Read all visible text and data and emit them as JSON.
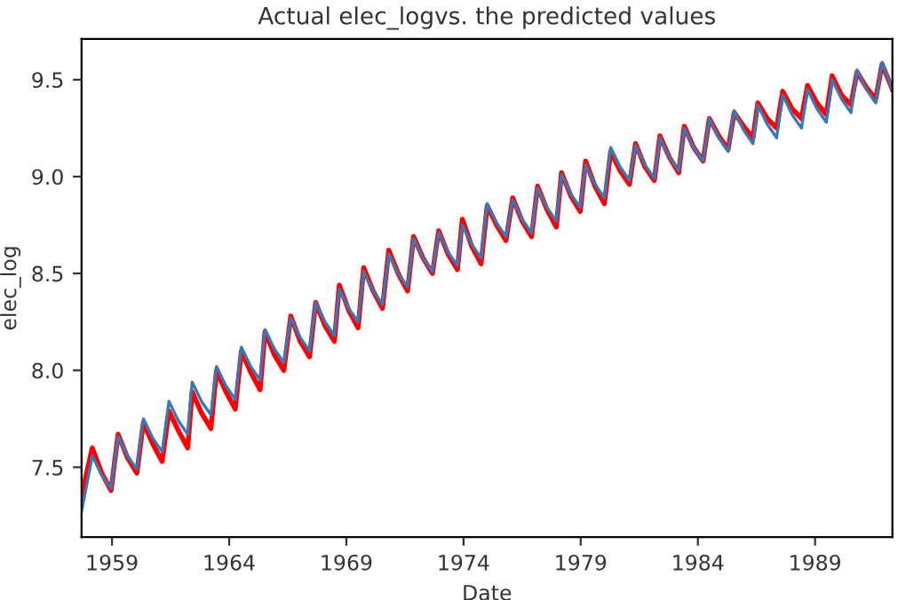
{
  "chart_data": {
    "type": "line",
    "title": "Actual elec_logvs. the predicted values",
    "xlabel": "Date",
    "ylabel": "elec_log",
    "x": [
      1957.7,
      1958.16,
      1958.56,
      1958.96,
      1959.26,
      1959.66,
      1960.06,
      1960.34,
      1960.74,
      1961.14,
      1961.43,
      1961.83,
      1962.23,
      1962.42,
      1962.82,
      1963.22,
      1963.46,
      1963.86,
      1964.26,
      1964.52,
      1964.92,
      1965.32,
      1965.53,
      1965.93,
      1966.33,
      1966.63,
      1967.03,
      1967.43,
      1967.69,
      1968.09,
      1968.49,
      1968.7,
      1969.1,
      1969.5,
      1969.74,
      1970.14,
      1970.54,
      1970.81,
      1971.21,
      1971.61,
      1971.87,
      1972.27,
      1972.67,
      1972.94,
      1973.34,
      1973.74,
      1973.95,
      1974.35,
      1974.75,
      1975.01,
      1975.41,
      1975.81,
      1976.1,
      1976.5,
      1976.9,
      1977.16,
      1977.56,
      1977.96,
      1978.18,
      1978.58,
      1978.98,
      1979.21,
      1979.61,
      1980.01,
      1980.28,
      1980.68,
      1981.08,
      1981.34,
      1981.74,
      1982.14,
      1982.38,
      1982.78,
      1983.18,
      1983.42,
      1983.82,
      1984.22,
      1984.49,
      1984.89,
      1985.29,
      1985.55,
      1985.95,
      1986.35,
      1986.56,
      1986.96,
      1987.36,
      1987.62,
      1988.02,
      1988.42,
      1988.68,
      1989.08,
      1989.48,
      1989.73,
      1990.13,
      1990.53,
      1990.79,
      1991.19,
      1991.59,
      1991.86,
      1992.3
    ],
    "series": [
      {
        "color": "#ff0000",
        "values": [
          7.35,
          7.6,
          7.47,
          7.38,
          7.67,
          7.55,
          7.47,
          7.73,
          7.62,
          7.53,
          7.79,
          7.69,
          7.6,
          7.89,
          7.78,
          7.7,
          8.0,
          7.89,
          7.8,
          8.1,
          7.99,
          7.9,
          8.2,
          8.08,
          8.0,
          8.28,
          8.15,
          8.07,
          8.35,
          8.23,
          8.15,
          8.44,
          8.31,
          8.22,
          8.53,
          8.41,
          8.32,
          8.62,
          8.5,
          8.41,
          8.69,
          8.58,
          8.5,
          8.72,
          8.6,
          8.52,
          8.78,
          8.64,
          8.55,
          8.85,
          8.75,
          8.67,
          8.89,
          8.77,
          8.69,
          8.95,
          8.83,
          8.74,
          9.02,
          8.9,
          8.82,
          9.08,
          8.95,
          8.86,
          9.13,
          9.03,
          8.96,
          9.17,
          9.05,
          8.98,
          9.21,
          9.1,
          9.02,
          9.26,
          9.15,
          9.08,
          9.3,
          9.21,
          9.14,
          9.33,
          9.26,
          9.2,
          9.38,
          9.3,
          9.25,
          9.44,
          9.35,
          9.3,
          9.47,
          9.38,
          9.32,
          9.52,
          9.42,
          9.37,
          9.54,
          9.46,
          9.4,
          9.58,
          9.45
        ]
      },
      {
        "color": "#3a78b5",
        "values": [
          7.27,
          7.56,
          7.46,
          7.39,
          7.66,
          7.56,
          7.49,
          7.75,
          7.65,
          7.58,
          7.84,
          7.74,
          7.67,
          7.94,
          7.84,
          7.77,
          8.02,
          7.92,
          7.85,
          8.12,
          8.02,
          7.95,
          8.21,
          8.11,
          8.04,
          8.27,
          8.17,
          8.1,
          8.35,
          8.25,
          8.18,
          8.42,
          8.32,
          8.25,
          8.51,
          8.41,
          8.34,
          8.6,
          8.5,
          8.43,
          8.68,
          8.58,
          8.51,
          8.71,
          8.61,
          8.54,
          8.75,
          8.65,
          8.58,
          8.86,
          8.76,
          8.69,
          8.88,
          8.78,
          8.71,
          8.94,
          8.84,
          8.77,
          9.01,
          8.91,
          8.84,
          9.06,
          8.96,
          8.89,
          9.15,
          9.05,
          8.98,
          9.16,
          9.06,
          8.99,
          9.2,
          9.1,
          9.03,
          9.25,
          9.15,
          9.08,
          9.3,
          9.2,
          9.13,
          9.34,
          9.24,
          9.17,
          9.37,
          9.27,
          9.2,
          9.42,
          9.32,
          9.25,
          9.45,
          9.35,
          9.28,
          9.5,
          9.4,
          9.33,
          9.55,
          9.45,
          9.38,
          9.59,
          9.45
        ]
      }
    ],
    "xlim": [
      1957.7,
      1992.3
    ],
    "xticks": [
      1959,
      1964,
      1969,
      1974,
      1979,
      1984,
      1989
    ],
    "ylim": [
      7.14,
      9.71
    ],
    "yticks": [
      7.5,
      {
        "value": 8,
        "label": "8.0"
      },
      8.5,
      {
        "value": 9,
        "label": "9.0"
      },
      9.5
    ],
    "grid": false
  }
}
